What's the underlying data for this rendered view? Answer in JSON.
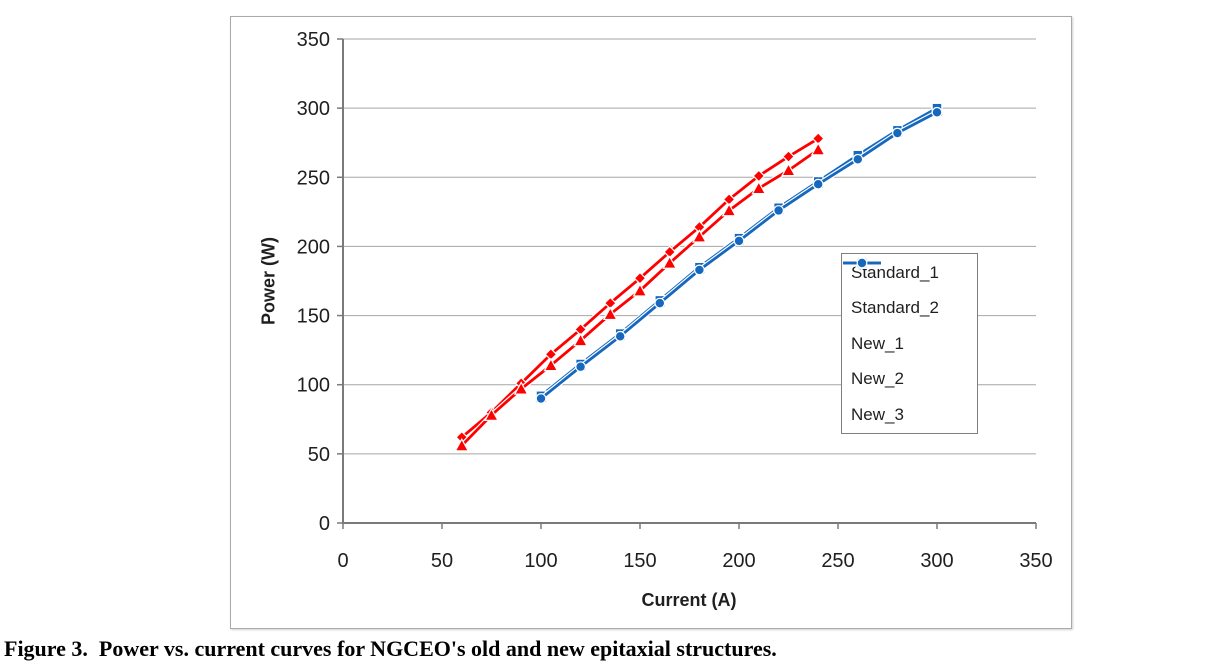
{
  "caption": "Figure 3.  Power vs. current curves for NGCEO's old and new epitaxial structures.",
  "chart_data": {
    "type": "line",
    "title": "",
    "xlabel": "Current (A)",
    "ylabel": "Power (W)",
    "xlim": [
      0,
      350
    ],
    "ylim": [
      0,
      350
    ],
    "xticks": [
      0,
      50,
      100,
      150,
      200,
      250,
      300,
      350
    ],
    "yticks": [
      0,
      50,
      100,
      150,
      200,
      250,
      300,
      350
    ],
    "grid": "horizontal-only",
    "legend_position": "inside-right",
    "colors": {
      "standard_red": "#fe0000",
      "new_light_blue": "#4f81bd",
      "new_blue": "#1568be",
      "gridline": "#a6a6a6",
      "axis": "#7a7a7a",
      "text": "#1f1f1f"
    },
    "series": [
      {
        "name": "Standard_1",
        "marker": "diamond",
        "color": "#fe0000",
        "x": [
          60,
          75,
          90,
          105,
          120,
          135,
          150,
          165,
          180,
          195,
          210,
          225,
          240
        ],
        "y": [
          62,
          80,
          101,
          122,
          140,
          159,
          177,
          196,
          214,
          234,
          251,
          265,
          278
        ]
      },
      {
        "name": "Standard_2",
        "marker": "triangle",
        "color": "#fe0000",
        "x": [
          60,
          75,
          90,
          105,
          120,
          135,
          150,
          165,
          180,
          195,
          210,
          225,
          240
        ],
        "y": [
          56,
          78,
          97,
          114,
          132,
          151,
          168,
          188,
          207,
          226,
          242,
          255,
          270
        ]
      },
      {
        "name": "New_1",
        "marker": "x",
        "color": "#4f81bd",
        "x": [
          100,
          120,
          140,
          160,
          180,
          200,
          220,
          240,
          260,
          280,
          300
        ],
        "y": [
          91,
          114,
          136,
          160,
          184,
          205,
          227,
          246,
          265,
          283,
          298
        ]
      },
      {
        "name": "New_2",
        "marker": "square",
        "color": "#1568be",
        "x": [
          100,
          120,
          140,
          160,
          180,
          200,
          220,
          240,
          260,
          280,
          300
        ],
        "y": [
          92,
          115,
          137,
          161,
          185,
          206,
          228,
          247,
          266,
          284,
          300
        ]
      },
      {
        "name": "New_3",
        "marker": "circle",
        "color": "#1568be",
        "x": [
          100,
          120,
          140,
          160,
          180,
          200,
          220,
          240,
          260,
          280,
          300
        ],
        "y": [
          90,
          113,
          135,
          159,
          183,
          204,
          226,
          245,
          263,
          282,
          297
        ]
      }
    ]
  }
}
